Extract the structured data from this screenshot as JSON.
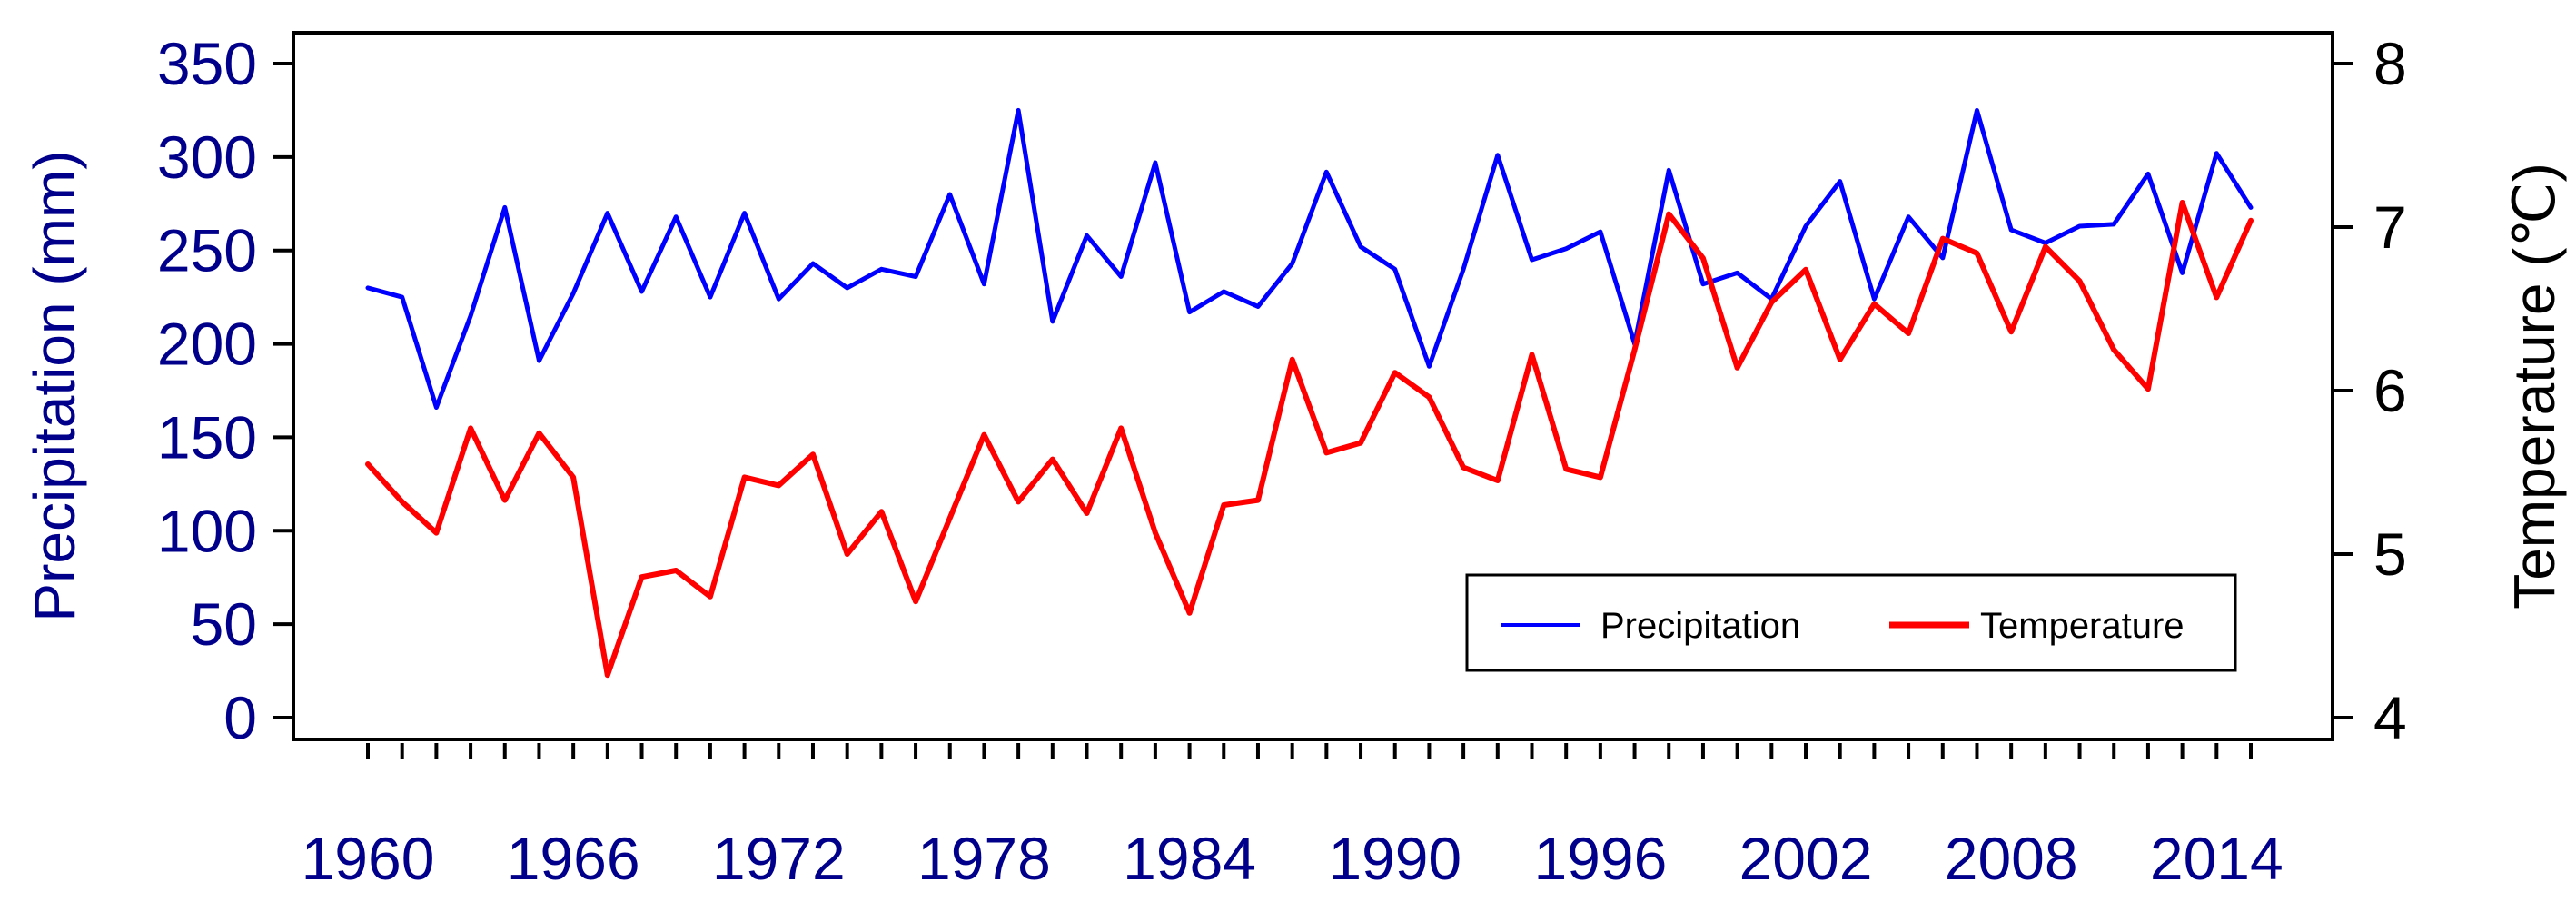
{
  "chart_data": {
    "type": "line",
    "title": "",
    "xlabel": "",
    "ylabel": "Precipitation (mm)",
    "y2label": "Temperature (℃)",
    "ylim": [
      0,
      350
    ],
    "y2lim": [
      4,
      8
    ],
    "xlim": [
      1960,
      2015
    ],
    "grid": false,
    "legend_position": "bottom-right",
    "x_tick_labels": [
      1960,
      1966,
      1972,
      1978,
      1984,
      1990,
      1996,
      2002,
      2008,
      2014
    ],
    "y_tick_labels": [
      0,
      50,
      100,
      150,
      200,
      250,
      300,
      350
    ],
    "y2_tick_labels": [
      4,
      5,
      6,
      7,
      8
    ],
    "years": [
      1960,
      1961,
      1962,
      1963,
      1964,
      1965,
      1966,
      1967,
      1968,
      1969,
      1970,
      1971,
      1972,
      1973,
      1974,
      1975,
      1976,
      1977,
      1978,
      1979,
      1980,
      1981,
      1982,
      1983,
      1984,
      1985,
      1986,
      1987,
      1988,
      1989,
      1990,
      1991,
      1992,
      1993,
      1994,
      1995,
      1996,
      1997,
      1998,
      1999,
      2000,
      2001,
      2002,
      2003,
      2004,
      2005,
      2006,
      2007,
      2008,
      2009,
      2010,
      2011,
      2012,
      2013,
      2014,
      2015
    ],
    "series": [
      {
        "name": "Precipitation",
        "axis": "left",
        "color": "#0000ff",
        "values": [
          230,
          225,
          166,
          215,
          273,
          191,
          227,
          270,
          228,
          268,
          225,
          270,
          224,
          243,
          230,
          240,
          236,
          280,
          232,
          325,
          212,
          258,
          236,
          297,
          217,
          228,
          220,
          243,
          292,
          252,
          240,
          188,
          240,
          301,
          245,
          251,
          260,
          200,
          293,
          232,
          238,
          224,
          263,
          287,
          224,
          268,
          246,
          325,
          261,
          254,
          263,
          264,
          291,
          238,
          302,
          273
        ]
      },
      {
        "name": "Temperature",
        "axis": "right",
        "color": "#ff0000",
        "values": [
          5.55,
          5.32,
          5.13,
          5.77,
          5.33,
          5.74,
          5.47,
          4.26,
          4.86,
          4.9,
          4.74,
          5.47,
          5.42,
          5.61,
          5.0,
          5.26,
          4.71,
          5.22,
          5.73,
          5.32,
          5.58,
          5.25,
          5.77,
          5.13,
          4.64,
          5.3,
          5.33,
          6.19,
          5.62,
          5.68,
          6.11,
          5.96,
          5.53,
          5.45,
          6.22,
          5.52,
          5.47,
          6.25,
          7.08,
          6.81,
          6.14,
          6.54,
          6.74,
          6.19,
          6.53,
          6.35,
          6.93,
          6.84,
          6.36,
          6.88,
          6.67,
          6.25,
          6.01,
          7.15,
          6.57,
          7.04
        ]
      }
    ]
  }
}
